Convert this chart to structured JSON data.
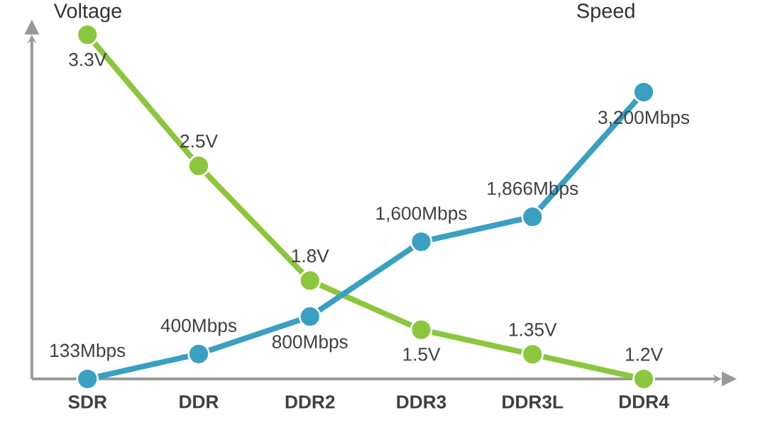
{
  "chart_data": {
    "type": "line",
    "ylabel": "Voltage",
    "y2label": "Speed",
    "categories": [
      "SDR",
      "DDR",
      "DDR2",
      "DDR3",
      "DDR3L",
      "DDR4"
    ],
    "series": [
      {
        "color": "#8cc63f",
        "values": [
          3.3,
          2.5,
          1.8,
          1.5,
          1.35,
          1.2
        ],
        "value_labels": [
          "3.3V",
          "2.5V",
          "1.8V",
          "1.5V",
          "1.35V",
          "1.2V"
        ]
      },
      {
        "color": "#3a9fc0",
        "axis": "y2",
        "values": [
          133,
          400,
          800,
          1600,
          1866,
          3200
        ],
        "value_labels": [
          "133Mbps",
          "400Mbps",
          "800Mbps",
          "1,600Mbps",
          "1,866Mbps",
          "3,200Mbps"
        ]
      }
    ],
    "tick_labels": "x",
    "marker": "circle"
  }
}
